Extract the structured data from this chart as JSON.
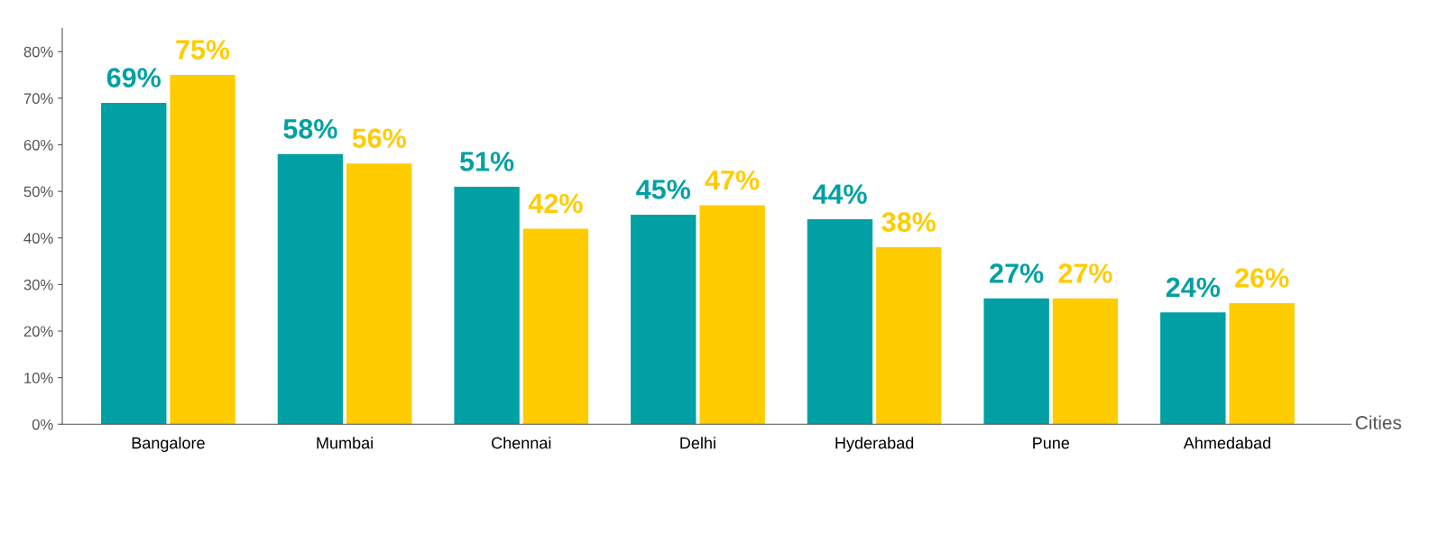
{
  "chart_data": {
    "type": "bar",
    "xlabel": "Cities",
    "categories": [
      "Bangalore",
      "Mumbai",
      "Chennai",
      "Delhi",
      "Hyderabad",
      "Pune",
      "Ahmedabad"
    ],
    "series": [
      {
        "color": "#00a0a4",
        "values": [
          69,
          58,
          51,
          45,
          44,
          27,
          24
        ],
        "value_labels": [
          "69%",
          "58%",
          "51%",
          "45%",
          "44%",
          "27%",
          "24%"
        ]
      },
      {
        "color": "#ffcc00",
        "values": [
          75,
          56,
          42,
          47,
          38,
          27,
          26
        ],
        "value_labels": [
          "75%",
          "56%",
          "42%",
          "47%",
          "38%",
          "27%",
          "26%"
        ]
      }
    ],
    "ylim": [
      0,
      85
    ],
    "yticks": [
      {
        "value": 0,
        "label": "0%"
      },
      {
        "value": 10,
        "label": "10%"
      },
      {
        "value": 20,
        "label": "20%"
      },
      {
        "value": 30,
        "label": "30%"
      },
      {
        "value": 40,
        "label": "40%"
      },
      {
        "value": 50,
        "label": "50%"
      },
      {
        "value": 60,
        "label": "60%"
      },
      {
        "value": 70,
        "label": "70%"
      },
      {
        "value": 80,
        "label": "80%"
      }
    ],
    "grid": false
  }
}
